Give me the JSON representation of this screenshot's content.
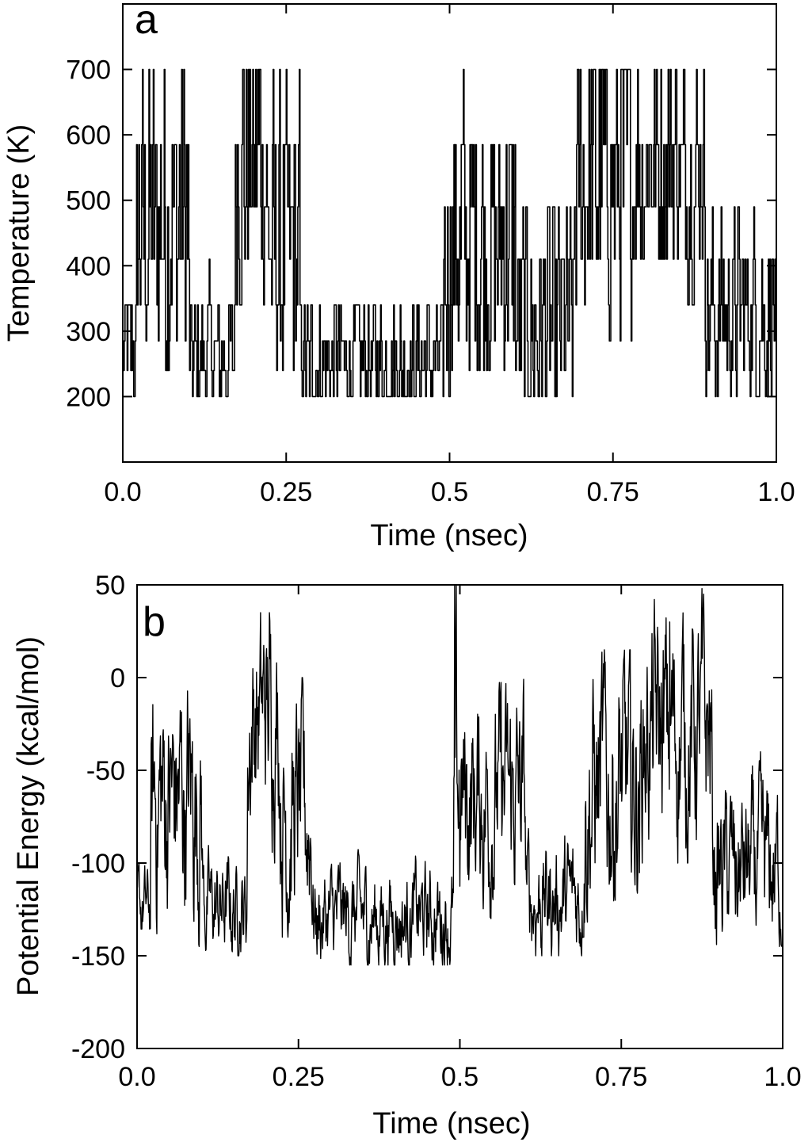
{
  "chart_data": [
    {
      "type": "line",
      "panel_label": "a",
      "xlabel": "Time (nsec)",
      "ylabel": "Temperature (K)",
      "xlim": [
        0.0,
        1.0
      ],
      "ylim": [
        100,
        800
      ],
      "x_ticks": [
        "0.0",
        "0.25",
        "0.5",
        "0.75",
        "1.0"
      ],
      "y_ticks": [
        "200",
        "300",
        "400",
        "500",
        "600",
        "700"
      ],
      "grid": false,
      "temperature_levels": [
        200,
        240,
        285,
        340,
        410,
        490,
        585,
        700
      ],
      "regimes": [
        {
          "x": [
            0.0,
            0.02
          ],
          "lo": 200,
          "hi": 410,
          "mean": 270
        },
        {
          "x": [
            0.02,
            0.1
          ],
          "lo": 200,
          "hi": 700,
          "mean": 470
        },
        {
          "x": [
            0.1,
            0.17
          ],
          "lo": 200,
          "hi": 410,
          "mean": 260
        },
        {
          "x": [
            0.17,
            0.22
          ],
          "lo": 285,
          "hi": 700,
          "mean": 560
        },
        {
          "x": [
            0.22,
            0.27
          ],
          "lo": 240,
          "hi": 700,
          "mean": 420
        },
        {
          "x": [
            0.27,
            0.49
          ],
          "lo": 200,
          "hi": 410,
          "mean": 250
        },
        {
          "x": [
            0.49,
            0.5
          ],
          "lo": 200,
          "hi": 700,
          "mean": 400
        },
        {
          "x": [
            0.5,
            0.6
          ],
          "lo": 240,
          "hi": 700,
          "mean": 440
        },
        {
          "x": [
            0.6,
            0.69
          ],
          "lo": 200,
          "hi": 585,
          "mean": 300
        },
        {
          "x": [
            0.69,
            0.78
          ],
          "lo": 240,
          "hi": 700,
          "mean": 520
        },
        {
          "x": [
            0.78,
            0.89
          ],
          "lo": 340,
          "hi": 700,
          "mean": 560
        },
        {
          "x": [
            0.89,
            1.0
          ],
          "lo": 200,
          "hi": 490,
          "mean": 330
        }
      ]
    },
    {
      "type": "line",
      "panel_label": "b",
      "xlabel": "Time (nsec)",
      "ylabel": "Potential Energy (kcal/mol)",
      "xlim": [
        0.0,
        1.0
      ],
      "ylim": [
        -200,
        50
      ],
      "x_ticks": [
        "0.0",
        "0.25",
        "0.5",
        "0.75",
        "1.0"
      ],
      "y_ticks": [
        "50",
        "0",
        "-50",
        "-100",
        "-150",
        "-200"
      ],
      "grid": false,
      "regimes": [
        {
          "x": [
            0.0,
            0.02
          ],
          "lo": -150,
          "hi": -100,
          "mean": -125
        },
        {
          "x": [
            0.02,
            0.1
          ],
          "lo": -145,
          "hi": 10,
          "mean": -65
        },
        {
          "x": [
            0.1,
            0.17
          ],
          "lo": -150,
          "hi": -85,
          "mean": -125
        },
        {
          "x": [
            0.17,
            0.22
          ],
          "lo": -100,
          "hi": 35,
          "mean": -20
        },
        {
          "x": [
            0.22,
            0.27
          ],
          "lo": -140,
          "hi": 0,
          "mean": -75
        },
        {
          "x": [
            0.27,
            0.49
          ],
          "lo": -155,
          "hi": -90,
          "mean": -130
        },
        {
          "x": [
            0.49,
            0.5
          ],
          "lo": -145,
          "hi": 50,
          "mean": -60
        },
        {
          "x": [
            0.5,
            0.6
          ],
          "lo": -130,
          "hi": 0,
          "mean": -65
        },
        {
          "x": [
            0.6,
            0.69
          ],
          "lo": -150,
          "hi": -75,
          "mean": -120
        },
        {
          "x": [
            0.69,
            0.78
          ],
          "lo": -140,
          "hi": 15,
          "mean": -60
        },
        {
          "x": [
            0.78,
            0.89
          ],
          "lo": -100,
          "hi": 45,
          "mean": -30
        },
        {
          "x": [
            0.89,
            1.0
          ],
          "lo": -145,
          "hi": -40,
          "mean": -105
        }
      ],
      "spikes": [
        {
          "x": 0.205,
          "y": 35
        },
        {
          "x": 0.492,
          "y": 50
        },
        {
          "x": 0.825,
          "y": 30
        },
        {
          "x": 0.875,
          "y": 48
        }
      ]
    }
  ]
}
